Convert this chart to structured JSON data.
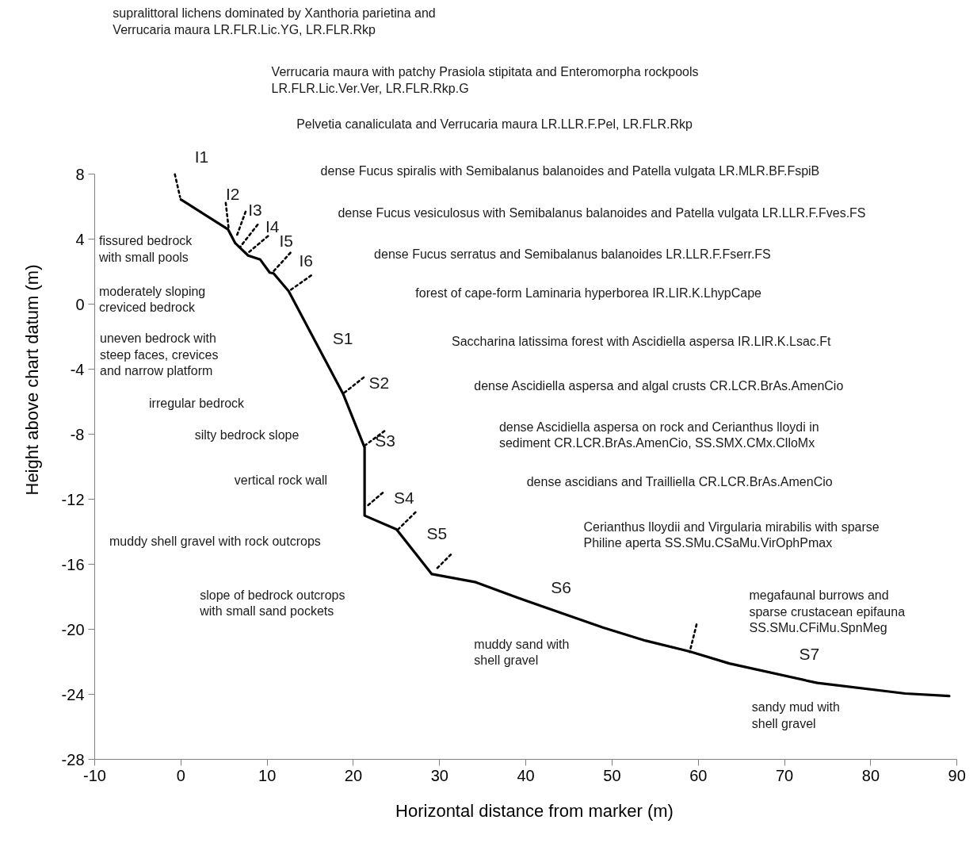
{
  "chart_data": {
    "type": "line",
    "xlabel": "Horizontal distance from marker (m)",
    "ylabel": "Height above chart datum (m)",
    "xlim": [
      -10,
      90
    ],
    "xticks": [
      -10,
      0,
      10,
      20,
      30,
      40,
      50,
      60,
      70,
      80,
      90
    ],
    "ylim": [
      -28,
      8
    ],
    "yticks": [
      8,
      4,
      0,
      -4,
      -8,
      -12,
      -16,
      -20,
      -24,
      -28
    ],
    "series": [
      {
        "color": "#000000",
        "line_style": "solid",
        "x": [
          0,
          5.45,
          6.3,
          7.8,
          9.2,
          10.3,
          10.75,
          12.5,
          18.8,
          21.3,
          21.3,
          25,
          29.1,
          34.2,
          39,
          49,
          53.9,
          59,
          63.6,
          73.8,
          84,
          89.1
        ],
        "values": [
          6.45,
          4.62,
          3.76,
          3.0,
          2.75,
          1.95,
          1.9,
          0.8,
          -5.5,
          -8.8,
          -13.0,
          -13.85,
          -16.6,
          -17.1,
          -18.05,
          -19.9,
          -20.7,
          -21.36,
          -22.1,
          -23.3,
          -23.95,
          -24.1
        ]
      },
      {
        "color": "#000000",
        "line_style": "dotted",
        "x": [
          -0.7,
          -0.1,
          null,
          5.2,
          5.55,
          null,
          7.5,
          6.4,
          null,
          8.9,
          6.9,
          null,
          10.1,
          7.8,
          null,
          12.7,
          10.6,
          null,
          15.1,
          12.5,
          null,
          21.2,
          18.9,
          null,
          23.6,
          21.3,
          null,
          23.4,
          21.5,
          null,
          27.2,
          25.2,
          null,
          31.3,
          29.6,
          null,
          59.8,
          59
        ],
        "values": [
          8.0,
          6.6,
          null,
          6.24,
          4.6,
          null,
          5.7,
          4.1,
          null,
          4.9,
          3.55,
          null,
          4.2,
          3.17,
          null,
          3.17,
          1.95,
          null,
          1.77,
          0.8,
          null,
          -4.5,
          -5.46,
          null,
          -7.8,
          -8.7,
          null,
          -11.6,
          -12.45,
          null,
          -12.8,
          -13.84,
          null,
          -15.4,
          -16.3,
          null,
          -19.7,
          -21.4
        ]
      }
    ],
    "annotations": [
      "supralittoral lichens dominated by Xanthoria parietina and\nVerrucaria maura LR.FLR.Lic.YG, LR.FLR.Rkp",
      "Verrucaria maura with patchy Prasiola stipitata and Enteromorpha rockpools\nLR.FLR.Lic.Ver.Ver, LR.FLR.Rkp.G",
      "Pelvetia canaliculata and Verrucaria maura LR.LLR.F.Pel, LR.FLR.Rkp",
      "dense Fucus spiralis with Semibalanus balanoides and Patella vulgata LR.MLR.BF.FspiB",
      "dense Fucus vesiculosus with Semibalanus balanoides and Patella vulgata LR.LLR.F.Fves.FS",
      "dense Fucus serratus and Semibalanus balanoides LR.LLR.F.Fserr.FS",
      "forest of cape-form Laminaria hyperborea IR.LIR.K.LhypCape",
      "Saccharina latissima forest with Ascidiella aspersa IR.LIR.K.Lsac.Ft",
      "dense Ascidiella aspersa and algal crusts CR.LCR.BrAs.AmenCio",
      "dense Ascidiella aspersa on rock and Cerianthus lloydi in\nsediment CR.LCR.BrAs.AmenCio, SS.SMX.CMx.ClloMx",
      "dense ascidians and Trailliella CR.LCR.BrAs.AmenCio",
      "Cerianthus lloydii and Virgularia mirabilis with sparse\nPhiline aperta SS.SMu.CSaMu.VirOphPmax",
      "megafaunal burrows and\nsparse crustacean epifauna\nSS.SMu.CFiMu.SpnMeg",
      "fissured bedrock\nwith small pools",
      "moderately sloping\ncreviced bedrock",
      "uneven bedrock with\nsteep faces, crevices\nand narrow platform",
      "irregular bedrock",
      "silty bedrock slope",
      "vertical rock wall",
      "muddy shell gravel with rock outcrops",
      "slope of bedrock outcrops\nwith small sand pockets",
      "muddy sand with\n shell gravel",
      "sandy mud with\nshell gravel",
      "I1",
      "I2",
      "I3",
      "I4",
      "I5",
      "I6",
      "S1",
      "S2",
      "S3",
      "S4",
      "S5",
      "S6",
      "S7"
    ]
  }
}
